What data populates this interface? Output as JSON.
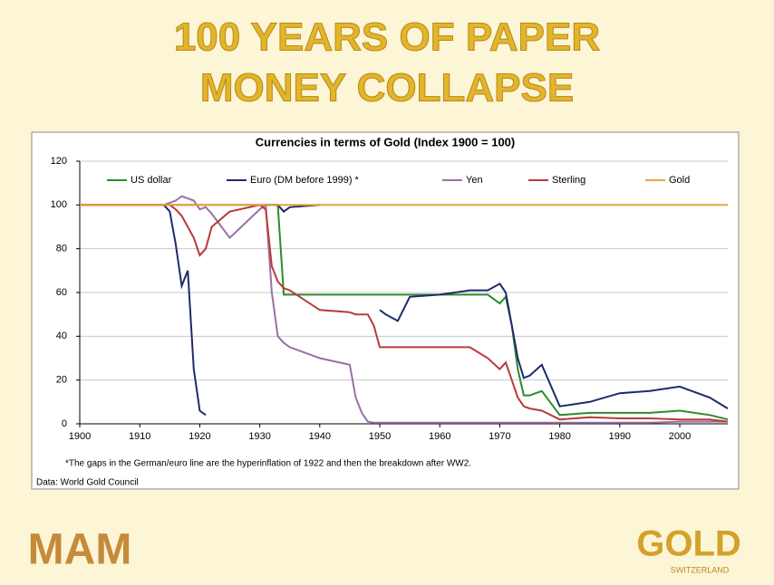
{
  "header": {
    "title_lines": [
      "100 YEARS OF PAPER",
      "MONEY COLLAPSE"
    ]
  },
  "logos": {
    "left": "MAM",
    "right": "GOLD",
    "right_sub": "SWITZERLAND"
  },
  "chart_data": {
    "type": "line",
    "title": "Currencies in terms of Gold (Index 1900 = 100)",
    "footnote": "*The gaps in the German/euro line are the hyperinflation of 1922 and then the breakdown after WW2.",
    "source": "Data: World Gold Council",
    "x": [
      1900,
      1905,
      1910,
      1914,
      1915,
      1916,
      1917,
      1918,
      1919,
      1920,
      1921,
      1922,
      1925,
      1930,
      1931,
      1932,
      1933,
      1934,
      1935,
      1940,
      1945,
      1946,
      1947,
      1948,
      1949,
      1950,
      1951,
      1953,
      1955,
      1960,
      1965,
      1968,
      1970,
      1971,
      1972,
      1973,
      1974,
      1975,
      1977,
      1980,
      1985,
      1990,
      1995,
      2000,
      2005,
      2008
    ],
    "series": [
      {
        "name": "US dollar",
        "color": "#2e8b2e",
        "values": [
          100,
          100,
          100,
          100,
          100,
          100,
          100,
          100,
          100,
          100,
          100,
          100,
          100,
          100,
          100,
          100,
          100,
          59,
          59,
          59,
          59,
          59,
          59,
          59,
          59,
          59,
          59,
          59,
          59,
          59,
          59,
          59,
          55,
          58,
          45,
          25,
          13,
          13,
          15,
          4,
          5,
          5,
          5,
          6,
          4,
          2
        ]
      },
      {
        "name": "Euro (DM before 1999) *",
        "color": "#1f2a6b",
        "values": [
          100,
          100,
          100,
          100,
          97,
          82,
          63,
          70,
          25,
          6,
          4,
          null,
          null,
          null,
          100,
          100,
          100,
          97,
          99,
          100,
          null,
          null,
          null,
          null,
          null,
          52,
          50,
          47,
          58,
          59,
          61,
          61,
          64,
          60,
          45,
          30,
          21,
          22,
          27,
          8,
          10,
          14,
          15,
          17,
          12,
          7
        ]
      },
      {
        "name": "Yen",
        "color": "#9b6fa8",
        "values": [
          100,
          100,
          100,
          100,
          101,
          102,
          104,
          103,
          102,
          98,
          99,
          96,
          85,
          98,
          100,
          60,
          40,
          37,
          35,
          30,
          27,
          12,
          5,
          1,
          0.5,
          0.5,
          0.5,
          0.5,
          0.5,
          0.5,
          0.5,
          0.5,
          0.5,
          0.5,
          0.5,
          0.5,
          0.5,
          0.5,
          0.5,
          0.5,
          0.5,
          0.5,
          0.5,
          1,
          1,
          1
        ]
      },
      {
        "name": "Sterling",
        "color": "#b83a3a",
        "values": [
          100,
          100,
          100,
          100,
          100,
          98,
          95,
          90,
          85,
          77,
          80,
          90,
          97,
          100,
          98,
          72,
          65,
          62,
          61,
          52,
          51,
          50,
          50,
          50,
          45,
          35,
          35,
          35,
          35,
          35,
          35,
          30,
          25,
          28,
          20,
          12,
          8,
          7,
          6,
          2,
          3,
          2.5,
          2.5,
          2,
          2,
          1
        ]
      },
      {
        "name": "Gold",
        "color": "#e8a33c",
        "values": [
          100,
          100,
          100,
          100,
          100,
          100,
          100,
          100,
          100,
          100,
          100,
          100,
          100,
          100,
          100,
          100,
          100,
          100,
          100,
          100,
          100,
          100,
          100,
          100,
          100,
          100,
          100,
          100,
          100,
          100,
          100,
          100,
          100,
          100,
          100,
          100,
          100,
          100,
          100,
          100,
          100,
          100,
          100,
          100,
          100,
          100
        ]
      }
    ],
    "xlim": [
      1900,
      2008
    ],
    "xticks": [
      1900,
      1910,
      1920,
      1930,
      1940,
      1950,
      1960,
      1970,
      1980,
      1990,
      2000
    ],
    "ylim": [
      0,
      120
    ],
    "yticks": [
      0,
      20,
      40,
      60,
      80,
      100,
      120
    ],
    "grid": true,
    "legend": "top"
  }
}
